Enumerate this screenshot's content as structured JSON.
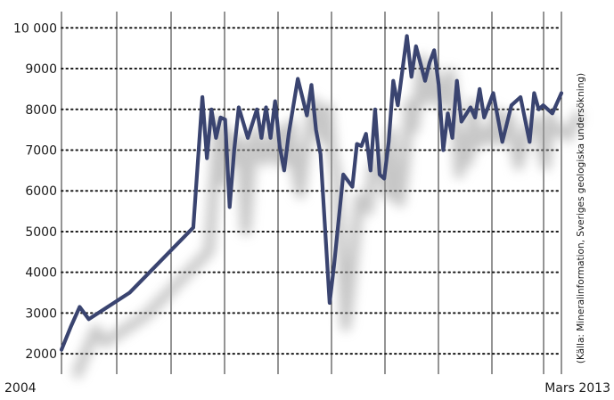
{
  "chart_data": {
    "type": "line",
    "title": "",
    "xlabel": "",
    "ylabel": "",
    "x_start_label": "2004",
    "x_end_label": "Mars 2013",
    "x_range": [
      "2004-01",
      "2013-03"
    ],
    "ylim": [
      1500,
      10400
    ],
    "yticks": [
      2000,
      3000,
      4000,
      5000,
      6000,
      7000,
      8000,
      9000,
      10000
    ],
    "ytick_labels": [
      "2000",
      "3000",
      "4000",
      "5000",
      "6000",
      "7000",
      "8000",
      "9000",
      "10 000"
    ],
    "grid": {
      "horizontal": "dotted",
      "vertical": "solid"
    },
    "source_note": "(Källa:  Mineralinformation, Sveriges geologiska undersökning)",
    "line_color": "#3a4470",
    "series": [
      {
        "x": [
          "2004-01",
          "2004-03",
          "2004-05",
          "2004-07",
          "2005-04",
          "2006-06",
          "2006-08",
          "2006-09",
          "2006-10",
          "2006-11",
          "2006-12",
          "2007-01",
          "2007-02",
          "2007-03",
          "2007-04",
          "2007-06",
          "2007-08",
          "2007-09",
          "2007-10",
          "2007-11",
          "2007-12",
          "2008-01",
          "2008-02",
          "2008-03",
          "2008-05",
          "2008-07",
          "2008-08",
          "2008-09",
          "2008-10",
          "2008-12",
          "2009-01",
          "2009-03",
          "2009-05",
          "2009-06",
          "2009-07",
          "2009-08",
          "2009-09",
          "2009-10",
          "2009-11",
          "2009-12",
          "2010-01",
          "2010-02",
          "2010-03",
          "2010-05",
          "2010-06",
          "2010-07",
          "2010-09",
          "2010-10",
          "2010-11",
          "2010-12",
          "2011-01",
          "2011-02",
          "2011-03",
          "2011-04",
          "2011-05",
          "2011-07",
          "2011-08",
          "2011-09",
          "2011-10",
          "2011-12",
          "2012-02",
          "2012-04",
          "2012-06",
          "2012-08",
          "2012-09",
          "2012-10",
          "2012-11",
          "2013-01",
          "2013-03"
        ],
        "y": [
          2100,
          2650,
          3150,
          2850,
          3500,
          5100,
          8300,
          6800,
          8000,
          7300,
          7800,
          7750,
          5600,
          7000,
          8050,
          7300,
          8000,
          7300,
          8050,
          7300,
          8200,
          7100,
          6500,
          7400,
          8750,
          7850,
          8600,
          7500,
          6900,
          3250,
          4200,
          6400,
          6100,
          7150,
          7100,
          7400,
          6500,
          8000,
          6400,
          6300,
          7200,
          8700,
          8100,
          9800,
          8800,
          9550,
          8700,
          9150,
          9450,
          8600,
          7000,
          7900,
          7300,
          8700,
          7700,
          8050,
          7800,
          8500,
          7800,
          8400,
          7200,
          8100,
          8300,
          7200,
          8400,
          8000,
          8100,
          7900,
          8400
        ]
      }
    ]
  }
}
